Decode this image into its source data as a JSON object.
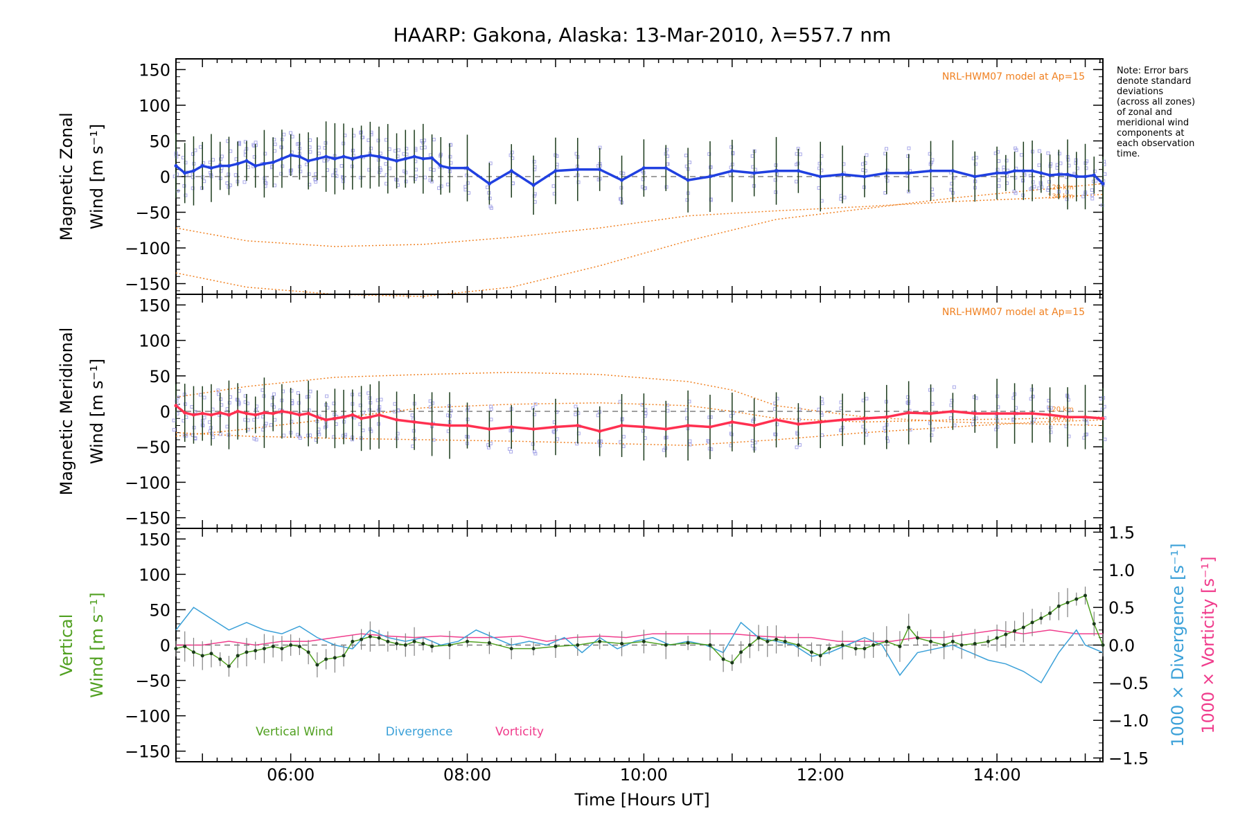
{
  "title": "HAARP: Gakona,  Alaska: 13-Mar-2010, λ=557.7 nm",
  "note": [
    "Note: Error bars",
    "denote standard",
    "deviations",
    "(across all zones)",
    "of zonal and",
    "meridional wind",
    "components at",
    "each observation",
    "time."
  ],
  "model_label": "NRL-HWM07 model at Ap=15",
  "xlabel": "Time [Hours UT]",
  "xticks": [
    "06:00",
    "08:00",
    "10:00",
    "12:00",
    "14:00"
  ],
  "yticks": [
    "150",
    "100",
    "50",
    "0",
    "−50",
    "−100",
    "−150"
  ],
  "colors": {
    "zonal": "#2040e0",
    "meridional": "#ff3050",
    "vertical": "#50a020",
    "divergence": "#3aa0d8",
    "vorticity": "#f03c8c",
    "model": "#f08020",
    "scatter": "#a8a8e8"
  },
  "chart_data": [
    {
      "type": "line",
      "ylabel_lines": [
        "Magnetic Zonal",
        "Wind [m s⁻¹]"
      ],
      "model_alt_labels": [
        "120 km",
        "130 km"
      ],
      "xlim": [
        4.7,
        15.2
      ],
      "ylim": [
        -165,
        165
      ],
      "grid": false,
      "series": [
        {
          "x": [
            4.7,
            4.8,
            4.9,
            5.0,
            5.1,
            5.2,
            5.3,
            5.4,
            5.5,
            5.6,
            5.7,
            5.8,
            5.9,
            6.0,
            6.1,
            6.2,
            6.3,
            6.4,
            6.5,
            6.6,
            6.7,
            6.8,
            6.9,
            7.0,
            7.1,
            7.2,
            7.3,
            7.4,
            7.5,
            7.6,
            7.7,
            7.8,
            8.0,
            8.25,
            8.5,
            8.75,
            9.0,
            9.25,
            9.5,
            9.75,
            10.0,
            10.25,
            10.5,
            10.75,
            11.0,
            11.25,
            11.5,
            11.75,
            12.0,
            12.25,
            12.5,
            12.75,
            13.0,
            13.25,
            13.5,
            13.75,
            14.0,
            14.1,
            14.2,
            14.3,
            14.4,
            14.5,
            14.6,
            14.7,
            14.8,
            14.9,
            15.0,
            15.1,
            15.2
          ],
          "values": [
            15,
            5,
            8,
            15,
            12,
            15,
            15,
            18,
            22,
            15,
            18,
            20,
            25,
            30,
            28,
            22,
            25,
            28,
            25,
            28,
            25,
            28,
            30,
            28,
            25,
            22,
            25,
            28,
            25,
            26,
            15,
            12,
            12,
            -10,
            8,
            -12,
            8,
            10,
            10,
            -5,
            12,
            12,
            -5,
            0,
            8,
            5,
            8,
            8,
            0,
            3,
            0,
            5,
            5,
            8,
            8,
            0,
            5,
            5,
            8,
            8,
            8,
            5,
            2,
            3,
            3,
            0,
            0,
            2,
            -10
          ]
        }
      ],
      "model": [
        {
          "x": [
            4.7,
            5.5,
            6.5,
            7.5,
            8.5,
            9.5,
            10.5,
            11.5,
            12.5,
            13.5,
            14.5,
            15.2
          ],
          "values": [
            -72,
            -90,
            -98,
            -95,
            -85,
            -72,
            -55,
            -48,
            -42,
            -35,
            -30,
            -25
          ]
        },
        {
          "x": [
            4.7,
            5.5,
            6.5,
            7.5,
            8.5,
            9.5,
            10.5,
            11.5,
            12.5,
            13.5,
            14.5,
            15.2
          ],
          "values": [
            -135,
            -155,
            -165,
            -168,
            -155,
            -125,
            -90,
            -60,
            -45,
            -30,
            -18,
            -10
          ]
        }
      ]
    },
    {
      "type": "line",
      "ylabel_lines": [
        "Magnetic Meridional",
        "Wind [m s⁻¹]"
      ],
      "model_alt_labels": [
        "120 km",
        "130 km"
      ],
      "xlim": [
        4.7,
        15.2
      ],
      "ylim": [
        -165,
        165
      ],
      "grid": false,
      "series": [
        {
          "x": [
            4.7,
            4.8,
            4.9,
            5.0,
            5.1,
            5.2,
            5.3,
            5.4,
            5.5,
            5.6,
            5.7,
            5.8,
            5.9,
            6.0,
            6.1,
            6.2,
            6.3,
            6.4,
            6.5,
            6.6,
            6.7,
            6.8,
            6.9,
            7.0,
            7.2,
            7.4,
            7.6,
            7.8,
            8.0,
            8.25,
            8.5,
            8.75,
            9.0,
            9.25,
            9.5,
            9.75,
            10.0,
            10.25,
            10.5,
            10.75,
            11.0,
            11.25,
            11.5,
            11.75,
            12.0,
            12.25,
            12.5,
            12.75,
            13.0,
            13.25,
            13.5,
            13.75,
            14.0,
            14.2,
            14.4,
            14.6,
            14.8,
            15.0,
            15.2
          ],
          "values": [
            8,
            -2,
            -5,
            -3,
            -5,
            -2,
            -5,
            0,
            -3,
            -5,
            -2,
            -3,
            0,
            -2,
            -5,
            -3,
            -8,
            -12,
            -10,
            -8,
            -5,
            -10,
            -8,
            -5,
            -12,
            -15,
            -18,
            -20,
            -20,
            -25,
            -22,
            -25,
            -22,
            -20,
            -28,
            -20,
            -22,
            -25,
            -20,
            -22,
            -15,
            -20,
            -12,
            -18,
            -15,
            -12,
            -10,
            -8,
            -2,
            -3,
            0,
            -3,
            -3,
            -3,
            -3,
            -5,
            -8,
            -8,
            -10
          ]
        }
      ],
      "model": [
        {
          "x": [
            4.7,
            5.5,
            6.5,
            7.5,
            8.5,
            9.5,
            10.5,
            11.0,
            11.5,
            12.5,
            13.5,
            14.5,
            15.2
          ],
          "values": [
            20,
            35,
            48,
            52,
            55,
            52,
            42,
            30,
            8,
            -8,
            -15,
            -18,
            -20
          ]
        },
        {
          "x": [
            4.7,
            5.5,
            6.5,
            7.5,
            8.5,
            9.5,
            10.5,
            11.0,
            11.5,
            12.5,
            13.5,
            14.5,
            15.2
          ],
          "values": [
            -35,
            -25,
            -10,
            5,
            10,
            12,
            8,
            0,
            -10,
            -15,
            -12,
            -10,
            -8
          ]
        },
        {
          "x": [
            4.7,
            5.5,
            6.5,
            7.5,
            8.5,
            9.5,
            10.5,
            11.5,
            12.5,
            13.5,
            14.5,
            15.2
          ],
          "values": [
            -30,
            -35,
            -38,
            -40,
            -42,
            -45,
            -48,
            -40,
            -30,
            -22,
            -15,
            -12
          ]
        }
      ]
    },
    {
      "type": "line",
      "ylabel_lines": [
        "Vertical",
        "Wind [m s⁻¹]"
      ],
      "y2label": "1000 × Divergence [s⁻¹]",
      "y3label": "1000 × Vorticity [s⁻¹]",
      "y2ticks": [
        "1.5",
        "1.0",
        "0.5",
        "0.0",
        "−0.5",
        "−1.0",
        "−1.5"
      ],
      "legend": [
        "Vertical Wind",
        "Divergence",
        "Vorticity"
      ],
      "legend_position": "bottom-left",
      "xlim": [
        4.7,
        15.2
      ],
      "ylim": [
        -165,
        165
      ],
      "y2lim": [
        -1.55,
        1.55
      ],
      "grid": false,
      "series": [
        {
          "name": "Vertical Wind",
          "x": [
            4.7,
            4.8,
            4.9,
            5.0,
            5.1,
            5.2,
            5.3,
            5.4,
            5.5,
            5.6,
            5.7,
            5.8,
            5.9,
            6.0,
            6.1,
            6.2,
            6.3,
            6.4,
            6.5,
            6.6,
            6.7,
            6.8,
            6.9,
            7.0,
            7.1,
            7.2,
            7.3,
            7.4,
            7.5,
            7.6,
            7.8,
            8.0,
            8.25,
            8.5,
            8.75,
            9.0,
            9.25,
            9.5,
            9.75,
            10.0,
            10.25,
            10.5,
            10.75,
            10.9,
            11.0,
            11.1,
            11.2,
            11.3,
            11.4,
            11.5,
            11.6,
            11.75,
            11.9,
            12.0,
            12.1,
            12.25,
            12.4,
            12.5,
            12.6,
            12.75,
            12.9,
            13.0,
            13.1,
            13.25,
            13.4,
            13.5,
            13.6,
            13.75,
            13.9,
            14.0,
            14.1,
            14.2,
            14.3,
            14.4,
            14.5,
            14.6,
            14.7,
            14.8,
            14.9,
            15.0,
            15.1,
            15.2
          ],
          "values": [
            -5,
            -2,
            -10,
            -15,
            -12,
            -20,
            -30,
            -15,
            -10,
            -8,
            -5,
            -2,
            -5,
            0,
            -2,
            -10,
            -28,
            -20,
            -18,
            -15,
            5,
            8,
            12,
            10,
            5,
            2,
            0,
            5,
            2,
            -2,
            0,
            5,
            3,
            -5,
            -5,
            -2,
            0,
            5,
            2,
            5,
            0,
            3,
            0,
            -20,
            -25,
            -10,
            0,
            10,
            5,
            8,
            5,
            0,
            -10,
            -15,
            -5,
            0,
            -5,
            -5,
            0,
            5,
            -2,
            25,
            10,
            5,
            0,
            5,
            0,
            2,
            5,
            10,
            15,
            20,
            25,
            32,
            38,
            45,
            55,
            60,
            65,
            70,
            30,
            0
          ]
        },
        {
          "name": "Divergence",
          "x": [
            4.7,
            4.9,
            5.1,
            5.3,
            5.5,
            5.7,
            5.9,
            6.1,
            6.3,
            6.5,
            6.7,
            6.9,
            7.1,
            7.3,
            7.5,
            7.7,
            7.9,
            8.1,
            8.3,
            8.5,
            8.7,
            8.9,
            9.1,
            9.3,
            9.5,
            9.7,
            9.9,
            10.1,
            10.3,
            10.5,
            10.7,
            10.9,
            11.1,
            11.3,
            11.5,
            11.7,
            11.9,
            12.1,
            12.3,
            12.5,
            12.7,
            12.9,
            13.1,
            13.3,
            13.5,
            13.7,
            13.9,
            14.1,
            14.3,
            14.5,
            14.7,
            14.9,
            15.0,
            15.2
          ],
          "values": [
            0.2,
            0.5,
            0.35,
            0.2,
            0.3,
            0.2,
            0.15,
            0.25,
            0.1,
            0.0,
            -0.05,
            0.2,
            0.1,
            0.05,
            0.1,
            0.0,
            0.05,
            0.2,
            0.1,
            0.0,
            0.05,
            0.0,
            0.1,
            -0.1,
            0.1,
            -0.05,
            0.05,
            0.1,
            0.0,
            0.05,
            0.0,
            -0.1,
            0.3,
            0.1,
            0.05,
            0.0,
            -0.15,
            -0.1,
            0.0,
            0.1,
            0.0,
            -0.4,
            -0.1,
            -0.05,
            0.0,
            -0.1,
            -0.2,
            -0.25,
            -0.35,
            -0.5,
            -0.1,
            0.2,
            0.0,
            -0.1
          ]
        },
        {
          "name": "Vorticity",
          "x": [
            4.7,
            5.0,
            5.3,
            5.6,
            5.9,
            6.2,
            6.5,
            6.8,
            7.1,
            7.4,
            7.7,
            8.0,
            8.3,
            8.6,
            8.9,
            9.2,
            9.5,
            9.8,
            10.1,
            10.4,
            10.7,
            11.0,
            11.3,
            11.6,
            11.9,
            12.2,
            12.5,
            12.8,
            13.1,
            13.4,
            13.7,
            14.0,
            14.3,
            14.6,
            14.9,
            15.2
          ],
          "values": [
            0.0,
            0.0,
            0.05,
            0.0,
            0.05,
            0.05,
            0.1,
            0.15,
            0.12,
            0.1,
            0.12,
            0.1,
            0.1,
            0.12,
            0.05,
            0.1,
            0.12,
            0.1,
            0.15,
            0.15,
            0.15,
            0.15,
            0.12,
            0.1,
            0.1,
            0.05,
            0.05,
            0.05,
            0.1,
            0.1,
            0.15,
            0.2,
            0.15,
            0.2,
            0.15,
            0.15
          ]
        }
      ]
    }
  ]
}
